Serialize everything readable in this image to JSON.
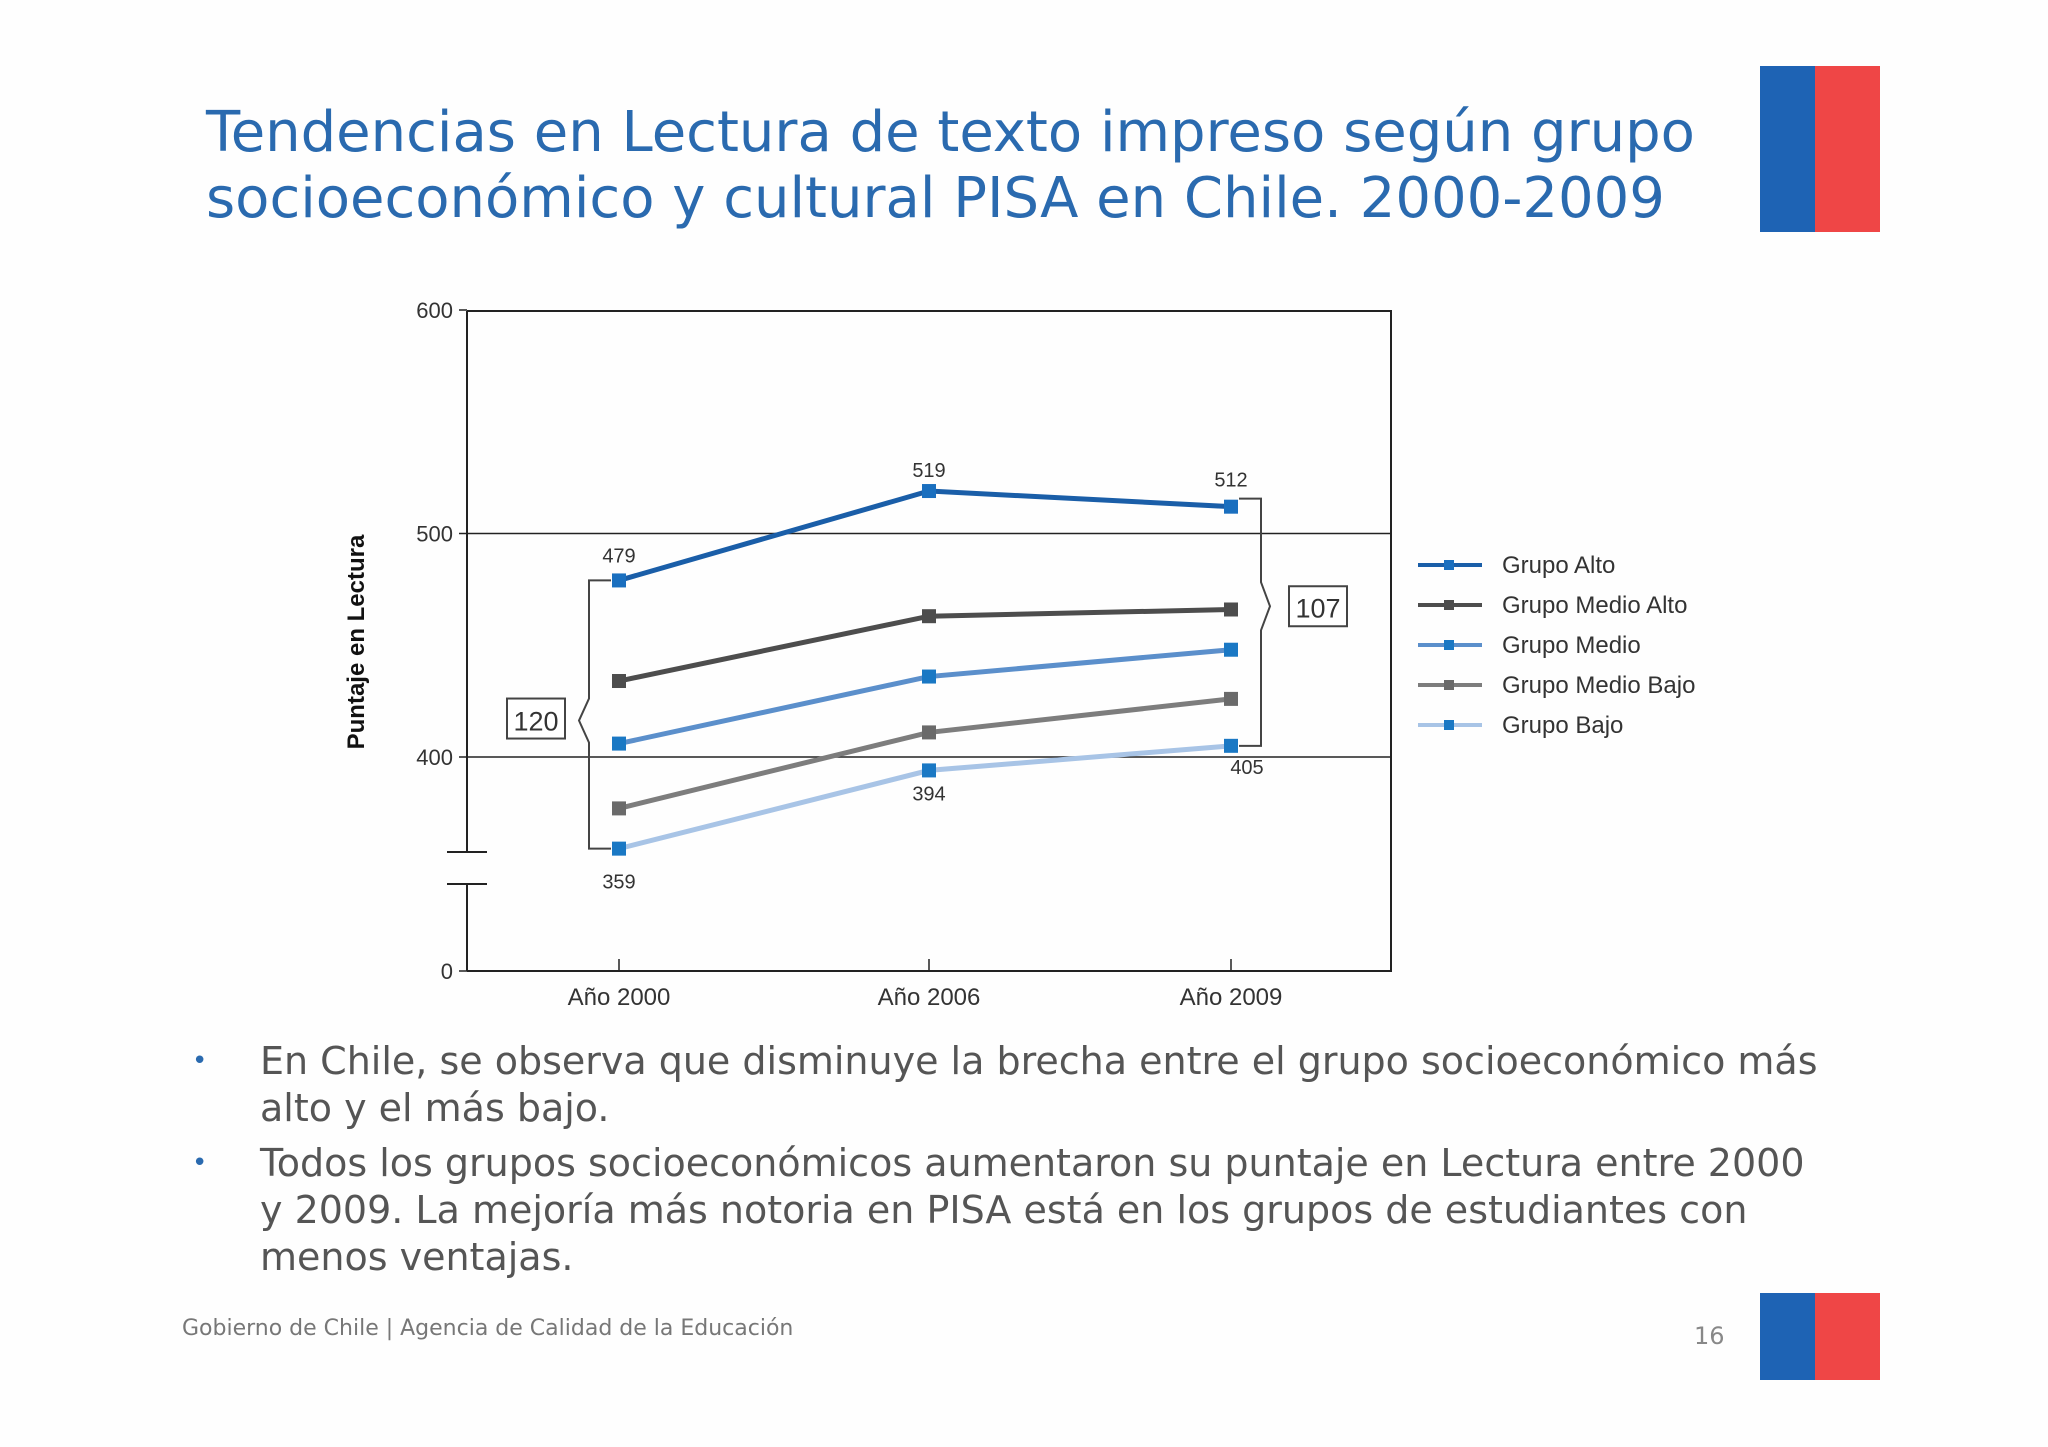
{
  "slide": {
    "title_line1": "Tendencias en Lectura de texto impreso según grupo",
    "title_line2": "socioeconómico y cultural PISA en Chile. 2000-2009",
    "bullets": [
      "En Chile, se observa que disminuye la brecha entre el grupo socioeconómico más alto y el más bajo.",
      "Todos los grupos socioeconómicos aumentaron su puntaje en Lectura entre 2000 y 2009. La mejoría más notoria en PISA está en los grupos de estudiantes con menos ventajas."
    ],
    "footer": "Gobierno de Chile | Agencia de Calidad de la Educación",
    "page_number": "16",
    "flag_colors": {
      "blue": "#1e63b4",
      "red": "#ef4646"
    }
  },
  "chart_data": {
    "type": "line",
    "categories": [
      "Año 2000",
      "Año 2006",
      "Año 2009"
    ],
    "ylabel": "Puntaje en Lectura",
    "yticks": [
      0,
      400,
      500,
      600
    ],
    "ylim": [
      0,
      600
    ],
    "axis_break": true,
    "gridlines": [
      400,
      500
    ],
    "legend_position": "right",
    "series": [
      {
        "name": "Grupo Alto",
        "values": [
          479,
          519,
          512
        ],
        "color": "#1a5ea8",
        "marker": "#1a6fbf"
      },
      {
        "name": "Grupo Medio Alto",
        "values": [
          434,
          463,
          466
        ],
        "color": "#4d4d4d",
        "marker": "#4d4d4d"
      },
      {
        "name": "Grupo Medio",
        "values": [
          406,
          436,
          448
        ],
        "color": "#5b8fcb",
        "marker": "#1a78c4"
      },
      {
        "name": "Grupo Medio Bajo",
        "values": [
          377,
          411,
          426
        ],
        "color": "#7d7d7d",
        "marker": "#6a6a6a"
      },
      {
        "name": "Grupo Bajo",
        "values": [
          359,
          394,
          405
        ],
        "color": "#a8c4e6",
        "marker": "#1a78c4"
      }
    ],
    "annotations": [
      {
        "text": "479",
        "series": 0,
        "point": 0
      },
      {
        "text": "519",
        "series": 0,
        "point": 1
      },
      {
        "text": "512",
        "series": 0,
        "point": 2
      },
      {
        "text": "359",
        "series": 4,
        "point": 0
      },
      {
        "text": "394",
        "series": 4,
        "point": 1
      },
      {
        "text": "405",
        "series": 4,
        "point": 2
      }
    ],
    "gap_labels": [
      {
        "text": "120",
        "point": 0,
        "from": 359,
        "to": 479
      },
      {
        "text": "107",
        "point": 2,
        "from": 405,
        "to": 512
      }
    ]
  }
}
